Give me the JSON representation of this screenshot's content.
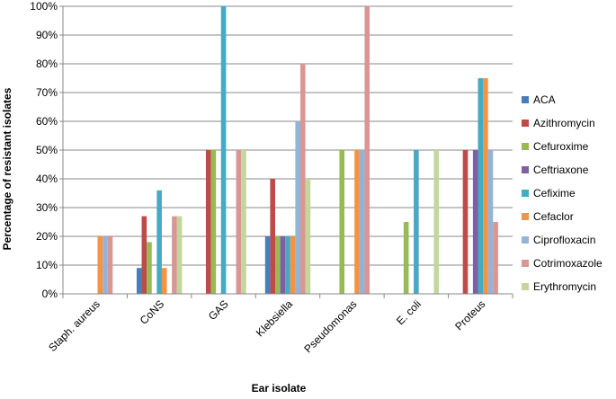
{
  "chart_data": {
    "type": "bar",
    "title": "",
    "xlabel": "Ear isolate",
    "ylabel": "Percentage of resistant isolates",
    "ylim": [
      0,
      100
    ],
    "ytick_step": 10,
    "ytick_suffix": "%",
    "grid": true,
    "legend_position": "right",
    "categories": [
      "Staph. aureus",
      "CoNS",
      "GAS",
      "Klebsiella",
      "Pseudomonas",
      "E. coli",
      "Proteus"
    ],
    "series": [
      {
        "name": "ACA",
        "color": "#4a7ebb",
        "values": [
          0,
          9,
          0,
          20,
          0,
          0,
          0
        ]
      },
      {
        "name": "Azithromycin",
        "color": "#be4b48",
        "values": [
          0,
          27,
          50,
          40,
          0,
          0,
          50
        ]
      },
      {
        "name": "Cefuroxime",
        "color": "#98b954",
        "values": [
          0,
          18,
          50,
          20,
          50,
          25,
          0
        ]
      },
      {
        "name": "Ceftriaxone",
        "color": "#7d60a0",
        "values": [
          0,
          0,
          0,
          20,
          0,
          0,
          50
        ]
      },
      {
        "name": "Cefixime",
        "color": "#46aac5",
        "values": [
          0,
          36,
          100,
          20,
          0,
          50,
          75
        ]
      },
      {
        "name": "Cefaclor",
        "color": "#f69240",
        "values": [
          20,
          9,
          0,
          20,
          50,
          0,
          75
        ]
      },
      {
        "name": "Ciprofloxacin",
        "color": "#95b3d7",
        "values": [
          20,
          0,
          0,
          60,
          50,
          0,
          50
        ]
      },
      {
        "name": "Cotrimoxazole",
        "color": "#d99694",
        "values": [
          20,
          27,
          50,
          80,
          100,
          0,
          25
        ]
      },
      {
        "name": "Erythromycin",
        "color": "#c3d69b",
        "values": [
          0,
          27,
          50,
          40,
          0,
          50,
          0
        ]
      }
    ]
  }
}
